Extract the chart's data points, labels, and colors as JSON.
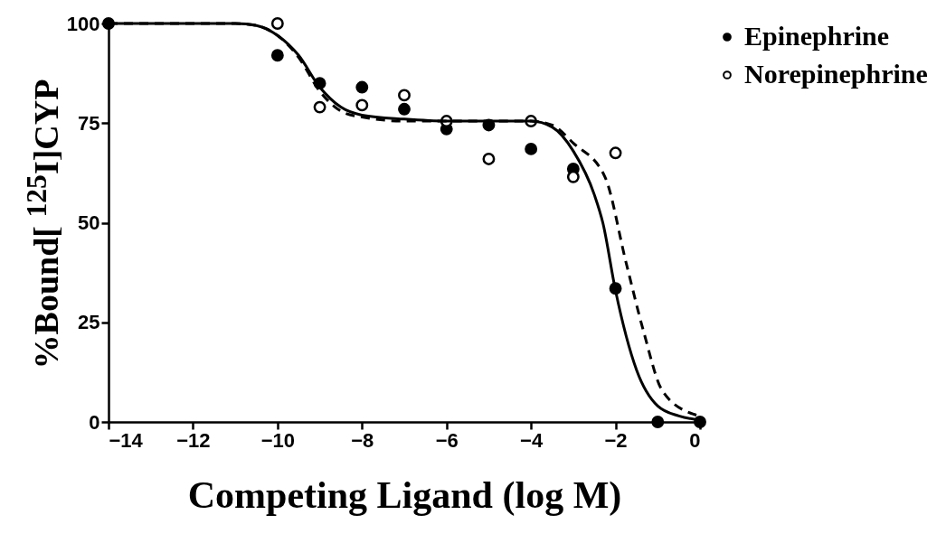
{
  "chart_data": {
    "type": "scatter",
    "xlabel": "Competing Ligand (log M)",
    "ylabel": "%Bound[ $^{125}$I]CYP",
    "xlim": [
      -14,
      0
    ],
    "xticks": [
      -14,
      -12,
      -10,
      -8,
      -6,
      -4,
      -2,
      0
    ],
    "ylim": [
      0,
      100
    ],
    "yticks": [
      0,
      25,
      50,
      75,
      100
    ],
    "grid": false,
    "legend": "top right",
    "marker": "circle",
    "series": [
      {
        "name": "Epinephrine",
        "color": "#000000",
        "x": [
          -14,
          -10,
          -9,
          -8,
          -7,
          -6,
          -5,
          -4,
          -3,
          -2,
          -1,
          0
        ],
        "values": [
          100,
          92,
          85,
          84,
          78.5,
          73.5,
          74.5,
          68.5,
          63.5,
          33.5,
          0,
          0
        ]
      },
      {
        "name": "Norepinephrine",
        "color": "#ffffff",
        "x": [
          -10,
          -9,
          -8,
          -7,
          -6,
          -5,
          -4,
          -3,
          -2
        ],
        "values": [
          100,
          79,
          79.5,
          82,
          75.5,
          66,
          75.5,
          61.5,
          67.5
        ]
      },
      {
        "type": "line",
        "color": "#000000",
        "line_style": "solid",
        "marker": "none",
        "x": [
          -14,
          -11,
          -10.5,
          -10,
          -9.5,
          -9,
          -8.5,
          -8,
          -7,
          -6,
          -4,
          -3.5,
          -3,
          -2.5,
          -2.3,
          -2,
          -1.5,
          -1,
          -0.5,
          0
        ],
        "values": [
          100,
          100,
          99.5,
          97,
          92,
          84,
          79,
          77,
          76,
          75.5,
          75.5,
          74,
          68,
          57,
          50,
          33,
          13,
          4,
          1.5,
          0.5
        ]
      },
      {
        "type": "line",
        "color": "#000000",
        "line_style": "dashed",
        "marker": "none",
        "x": [
          -14,
          -11,
          -10.5,
          -10,
          -9.5,
          -9,
          -8.5,
          -8,
          -7,
          -6,
          -4,
          -3.5,
          -3,
          -2.25,
          -1.75,
          -1.33,
          -0.9,
          -0.17,
          0
        ],
        "values": [
          100,
          100,
          99.5,
          97,
          91.5,
          83,
          78,
          76.5,
          75.5,
          75.5,
          75.5,
          74.5,
          70,
          61.5,
          40,
          22.5,
          8,
          2,
          1.5
        ]
      }
    ]
  }
}
